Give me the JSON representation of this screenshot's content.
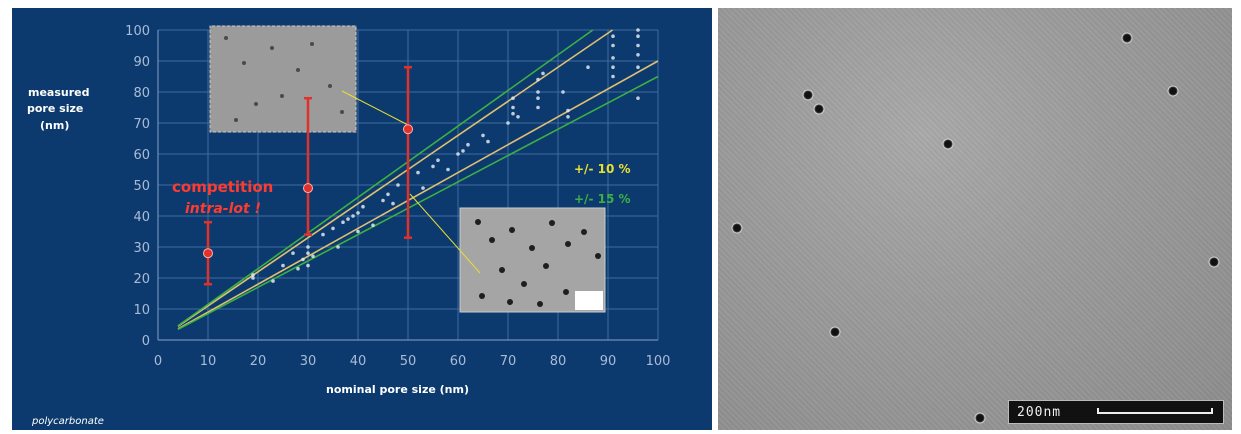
{
  "chart_data": {
    "type": "scatter",
    "xlabel": "nominal pore size (nm)",
    "ylabel_lines": [
      "measured",
      "pore size",
      "(nm)"
    ],
    "xlim": [
      0,
      100
    ],
    "ylim": [
      0,
      100
    ],
    "xticks": [
      0,
      10,
      20,
      30,
      40,
      50,
      60,
      70,
      80,
      90,
      100
    ],
    "yticks": [
      0,
      10,
      20,
      30,
      40,
      50,
      60,
      70,
      80,
      90,
      100
    ],
    "grid": true,
    "footnote": "polycarbonate",
    "annotation_lines": [
      "competition",
      "intra-lot !"
    ],
    "legend": [
      {
        "label": "+/- 10 %",
        "color": "#e8e030"
      },
      {
        "label": "+/- 15 %",
        "color": "#3cb043"
      }
    ],
    "lines": [
      {
        "name": "+10%",
        "slope": 1.1,
        "color": "#e0c070"
      },
      {
        "name": "-10%",
        "slope": 0.9,
        "color": "#e0c070"
      },
      {
        "name": "+15%",
        "slope": 1.15,
        "color": "#3cb043"
      },
      {
        "name": "-15%",
        "slope": 0.85,
        "color": "#3cb043"
      }
    ],
    "error_bars": [
      {
        "x": 10,
        "y": 28,
        "low": 18,
        "high": 38
      },
      {
        "x": 30,
        "y": 49,
        "low": 34,
        "high": 78
      },
      {
        "x": 50,
        "y": 68,
        "low": 33,
        "high": 88
      }
    ],
    "points": [
      [
        19,
        20
      ],
      [
        19,
        21
      ],
      [
        23,
        19
      ],
      [
        25,
        24
      ],
      [
        27,
        28
      ],
      [
        28,
        23
      ],
      [
        29,
        26
      ],
      [
        30,
        24
      ],
      [
        30,
        28
      ],
      [
        30,
        30
      ],
      [
        31,
        27
      ],
      [
        33,
        34
      ],
      [
        35,
        36
      ],
      [
        36,
        30
      ],
      [
        37,
        38
      ],
      [
        38,
        39
      ],
      [
        39,
        40
      ],
      [
        40,
        41
      ],
      [
        40,
        35
      ],
      [
        41,
        43
      ],
      [
        43,
        37
      ],
      [
        45,
        45
      ],
      [
        46,
        47
      ],
      [
        47,
        44
      ],
      [
        48,
        50
      ],
      [
        52,
        54
      ],
      [
        53,
        49
      ],
      [
        55,
        56
      ],
      [
        56,
        58
      ],
      [
        58,
        55
      ],
      [
        60,
        60
      ],
      [
        61,
        61
      ],
      [
        62,
        63
      ],
      [
        65,
        66
      ],
      [
        66,
        64
      ],
      [
        70,
        70
      ],
      [
        71,
        73
      ],
      [
        71,
        75
      ],
      [
        71,
        78
      ],
      [
        72,
        72
      ],
      [
        76,
        75
      ],
      [
        76,
        80
      ],
      [
        76,
        84
      ],
      [
        77,
        86
      ],
      [
        76,
        78
      ],
      [
        81,
        80
      ],
      [
        82,
        72
      ],
      [
        82,
        74
      ],
      [
        86,
        88
      ],
      [
        91,
        85
      ],
      [
        91,
        88
      ],
      [
        91,
        91
      ],
      [
        91,
        95
      ],
      [
        91,
        98
      ],
      [
        96,
        92
      ],
      [
        96,
        95
      ],
      [
        96,
        98
      ],
      [
        96,
        100
      ],
      [
        96,
        88
      ],
      [
        96,
        78
      ]
    ]
  },
  "sem": {
    "scale_label": "200nm"
  }
}
